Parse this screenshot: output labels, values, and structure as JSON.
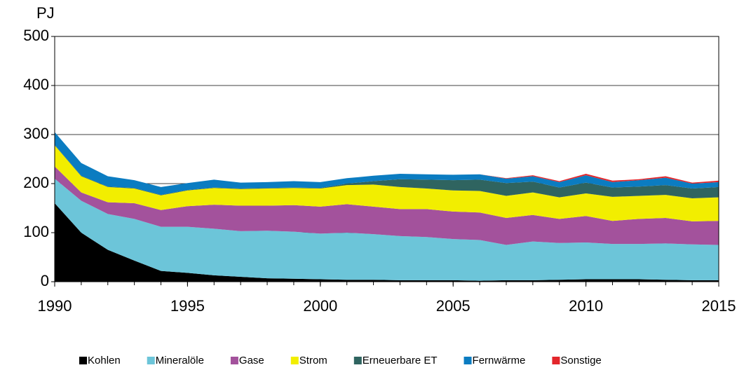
{
  "chart_data": {
    "type": "stacked-area",
    "y_label": "PJ",
    "x": [
      1990,
      1991,
      1992,
      1993,
      1994,
      1995,
      1996,
      1997,
      1998,
      1999,
      2000,
      2001,
      2002,
      2003,
      2004,
      2005,
      2006,
      2007,
      2008,
      2009,
      2010,
      2011,
      2012,
      2013,
      2014,
      2015
    ],
    "xlim": [
      1990,
      2015
    ],
    "xticks": [
      1990,
      1995,
      2000,
      2005,
      2010,
      2015
    ],
    "ylim": [
      0,
      500
    ],
    "yticks": [
      0,
      100,
      200,
      300,
      400,
      500
    ],
    "grid": true,
    "legend": "bottom",
    "series": [
      {
        "name": "Kohlen",
        "color": "#000000",
        "values": [
          160,
          100,
          65,
          43,
          22,
          18,
          13,
          10,
          7,
          6,
          5,
          4,
          4,
          3,
          3,
          3,
          2,
          3,
          3,
          4,
          5,
          5,
          5,
          4,
          3,
          3
        ]
      },
      {
        "name": "Mineralöle",
        "color": "#6cc5d9",
        "values": [
          50,
          65,
          73,
          85,
          90,
          94,
          95,
          93,
          97,
          96,
          93,
          96,
          93,
          90,
          88,
          84,
          83,
          72,
          79,
          75,
          75,
          72,
          72,
          74,
          73,
          72
        ]
      },
      {
        "name": "Gase",
        "color": "#a3529c",
        "values": [
          25,
          17,
          24,
          32,
          34,
          42,
          49,
          52,
          51,
          54,
          55,
          58,
          56,
          55,
          57,
          56,
          56,
          55,
          54,
          49,
          54,
          47,
          51,
          52,
          47,
          49
        ]
      },
      {
        "name": "Strom",
        "color": "#f2ee00",
        "values": [
          43,
          33,
          31,
          30,
          30,
          32,
          34,
          34,
          35,
          35,
          37,
          39,
          45,
          45,
          42,
          43,
          44,
          45,
          46,
          44,
          46,
          49,
          47,
          47,
          47,
          48
        ]
      },
      {
        "name": "Erneuerbare ET",
        "color": "#2f6460",
        "values": [
          1,
          1,
          1,
          1,
          1,
          1,
          1,
          1,
          1,
          1,
          1,
          3,
          7,
          16,
          18,
          21,
          23,
          26,
          22,
          20,
          22,
          19,
          19,
          20,
          20,
          21
        ]
      },
      {
        "name": "Fernwärme",
        "color": "#0b7cc1",
        "values": [
          26,
          26,
          21,
          16,
          16,
          14,
          16,
          12,
          12,
          13,
          12,
          11,
          11,
          11,
          11,
          11,
          11,
          9,
          11,
          11,
          15,
          11,
          13,
          15,
          10,
          10
        ]
      },
      {
        "name": "Sonstige",
        "color": "#e3262b",
        "values": [
          0,
          0,
          0,
          0,
          0,
          0,
          0,
          0,
          0,
          0,
          0,
          0,
          0,
          0,
          0,
          0,
          0,
          1,
          2,
          2,
          3,
          3,
          2,
          3,
          2,
          3
        ]
      }
    ]
  }
}
